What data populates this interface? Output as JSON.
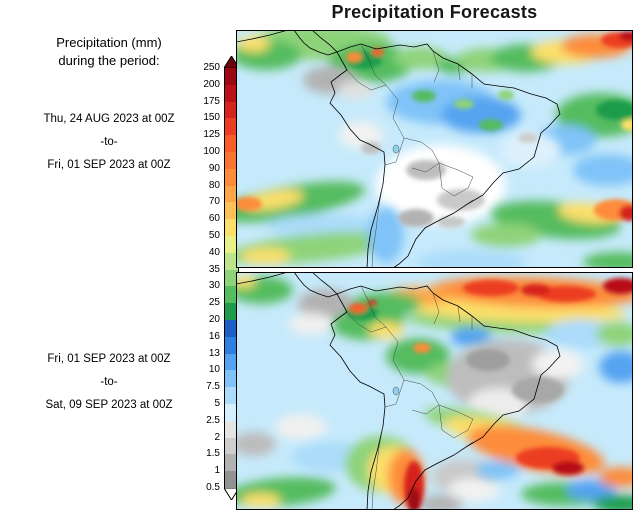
{
  "title": "Precipitation Forecasts",
  "sidebar": {
    "legend_title_line1": "Precipitation (mm)",
    "legend_title_line2": "during the period:"
  },
  "periods": [
    {
      "line1": "Thu, 24 AUG 2023 at 00Z",
      "line2": "-to-",
      "line3": "Fri, 01 SEP 2023 at 00Z"
    },
    {
      "line1": "Fri, 01 SEP 2023 at 00Z",
      "line2": "-to-",
      "line3": "Sat, 09 SEP 2023 at 00Z"
    }
  ],
  "colorbar": {
    "labels": [
      "250",
      "200",
      "175",
      "150",
      "125",
      "100",
      "90",
      "80",
      "70",
      "60",
      "50",
      "40",
      "35",
      "30",
      "25",
      "20",
      "16",
      "13",
      "10",
      "7.5",
      "5",
      "2.5",
      "2",
      "1.5",
      "1",
      "0.5"
    ],
    "segment_colors": [
      "#9b0812",
      "#b81117",
      "#d6231d",
      "#ec3c23",
      "#f75d2b",
      "#fb7532",
      "#fd8c3a",
      "#fda647",
      "#fdc157",
      "#fbdf6b",
      "#e8f087",
      "#bce48a",
      "#8ed379",
      "#55bc5f",
      "#1e9c4c",
      "#1d5fc6",
      "#2e7fe0",
      "#54a3f1",
      "#7fc3f8",
      "#abdcfa",
      "#d4effd",
      "#e4e4e4",
      "#cdcdcd",
      "#b2b2b2",
      "#929292"
    ],
    "top_arrow_color": "#6e040c",
    "bottom_arrow_color": "#ffffff"
  }
}
